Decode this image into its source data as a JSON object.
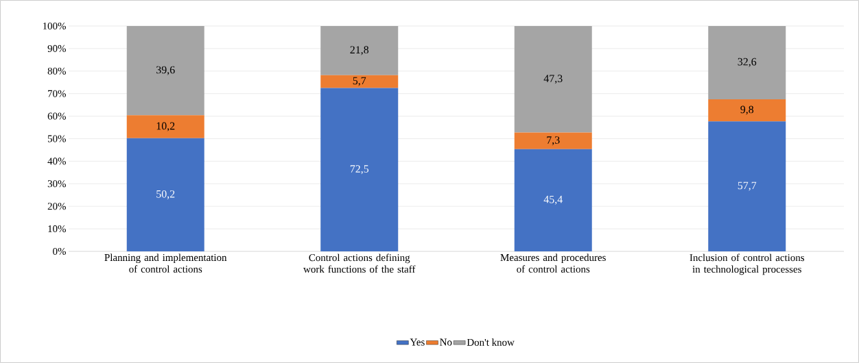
{
  "chart_data": {
    "type": "bar",
    "stacked": true,
    "categories": [
      "Planning and implementation of control actions",
      "Control actions defining work functions of the staff",
      "Measures and procedures of control actions",
      "Inclusion of control actions in technological processes"
    ],
    "series": [
      {
        "name": "Yes",
        "color": "#4472c4",
        "values": [
          50.2,
          72.5,
          45.4,
          57.7
        ],
        "value_labels": [
          "50,2",
          "72,5",
          "45,4",
          "57,7"
        ]
      },
      {
        "name": "No",
        "color": "#ed7d31",
        "values": [
          10.2,
          5.7,
          7.3,
          9.8
        ],
        "value_labels": [
          "10,2",
          "5,7",
          "7,3",
          "9,8"
        ]
      },
      {
        "name": "Don't know",
        "color": "#a5a5a5",
        "values": [
          39.6,
          21.8,
          47.3,
          32.6
        ],
        "value_labels": [
          "39,6",
          "21,8",
          "47,3",
          "32,6"
        ]
      }
    ],
    "ylim": [
      0,
      100
    ],
    "yticks": [
      {
        "value": 0,
        "label": "0%"
      },
      {
        "value": 10,
        "label": "10%"
      },
      {
        "value": 20,
        "label": "20%"
      },
      {
        "value": 30,
        "label": "30%"
      },
      {
        "value": 40,
        "label": "40%"
      },
      {
        "value": 50,
        "label": "50%"
      },
      {
        "value": 60,
        "label": "60%"
      },
      {
        "value": 70,
        "label": "70%"
      },
      {
        "value": 80,
        "label": "80%"
      },
      {
        "value": 90,
        "label": "90%"
      },
      {
        "value": 100,
        "label": "100%"
      }
    ],
    "grid": "y",
    "legend": "bottom"
  }
}
